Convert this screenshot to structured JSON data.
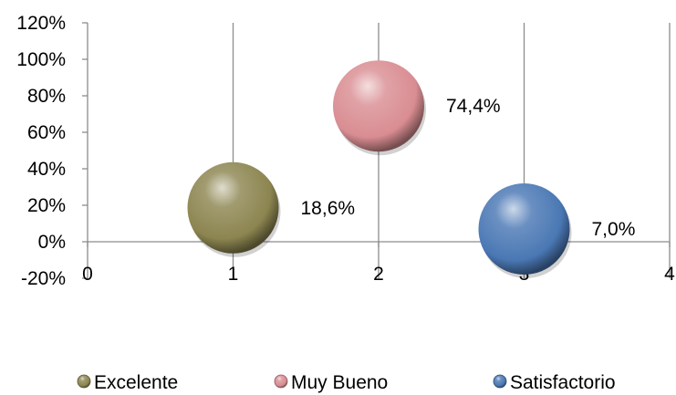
{
  "chart_data": {
    "type": "scatter",
    "x_ticks": [
      "0",
      "1",
      "2",
      "3",
      "4"
    ],
    "y_ticks": [
      "-20%",
      "0%",
      "20%",
      "40%",
      "60%",
      "80%",
      "100%",
      "120%"
    ],
    "xlim": [
      0,
      4
    ],
    "ylim": [
      -20,
      120
    ],
    "grid": "vertical",
    "legend_position": "bottom",
    "series": [
      {
        "name": "Excelente",
        "x": 1,
        "y": 18.6,
        "label": "18,6%",
        "color": "#8c8550"
      },
      {
        "name": "Muy Bueno",
        "x": 2,
        "y": 74.4,
        "label": "74,4%",
        "color": "#d98d92"
      },
      {
        "name": "Satisfactorio",
        "x": 3,
        "y": 7.0,
        "label": "7,0%",
        "color": "#4a78b4"
      }
    ]
  }
}
